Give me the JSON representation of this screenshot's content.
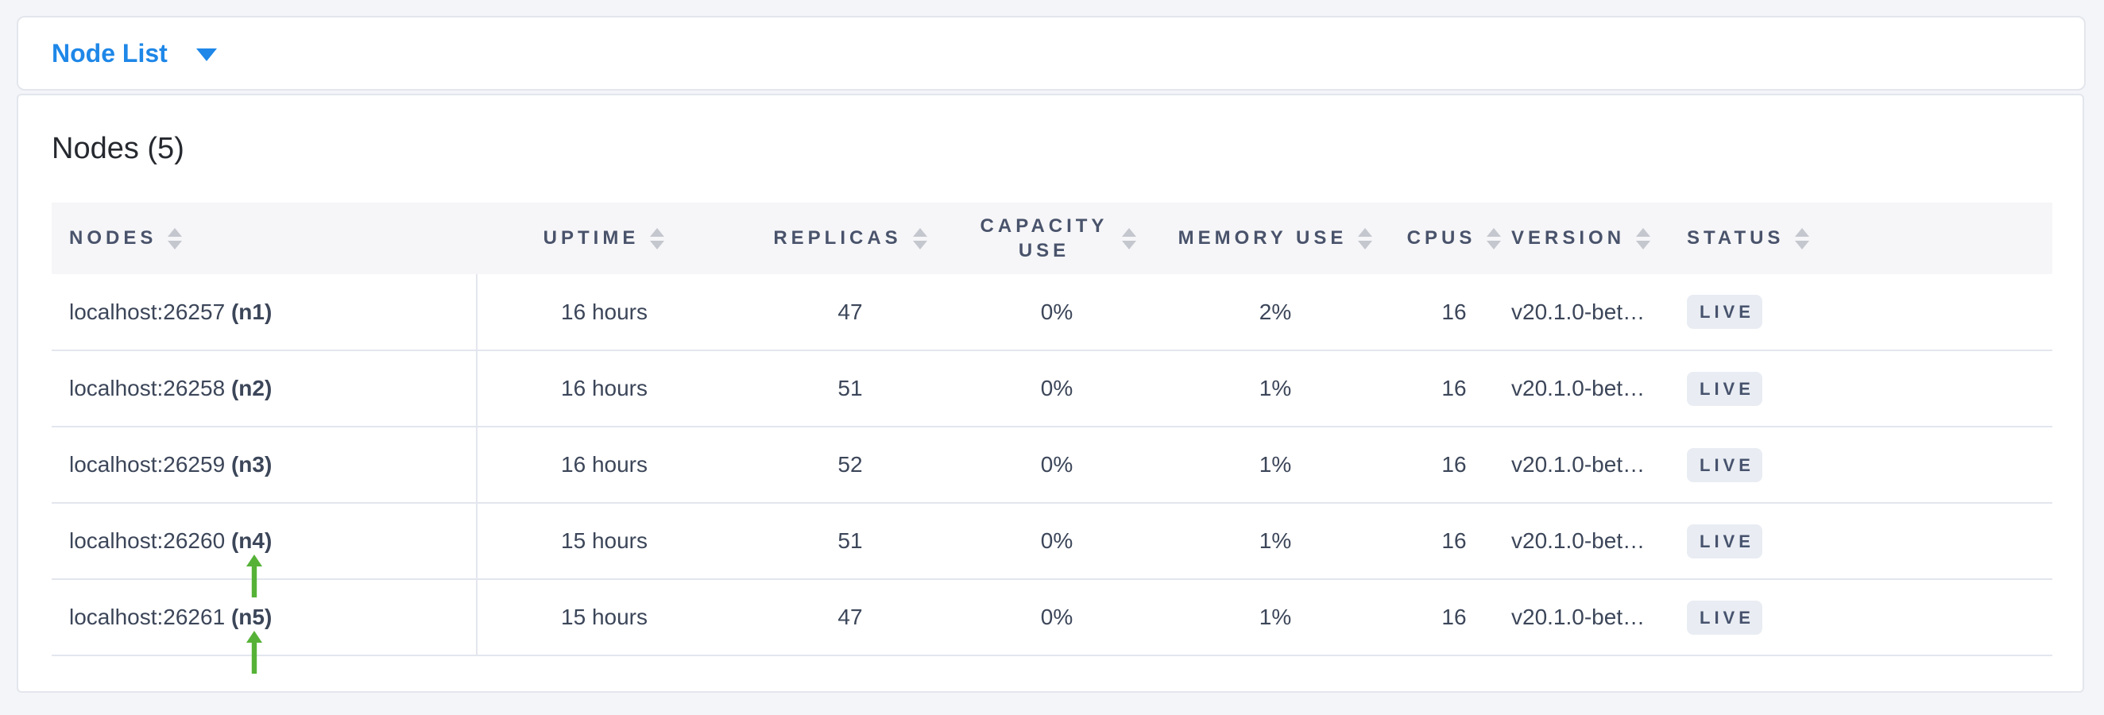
{
  "colors": {
    "accent": "#1e87e8",
    "arrow_green": "#55b237",
    "page_bg": "#f3f5f9",
    "card_border": "#e3e6ec",
    "header_bg": "#f6f6f8",
    "header_text": "#49536b",
    "cell_text": "#3c4659",
    "title_text": "#26292f",
    "row_border": "#e3e6ee",
    "sort_icon_color": "#c4c7ce",
    "badge_bg": "#e9edf3",
    "badge_text": "#47536d"
  },
  "icons": {
    "caret_down": "caret-down triangle",
    "sort": "up/down triangle pair",
    "annotation": "green-arrow-up"
  },
  "toolbar": {
    "dropdown_label": "Node List"
  },
  "main": {
    "title": "Nodes (5)"
  },
  "table": {
    "columns": [
      {
        "id": "nodes",
        "label": "NODES",
        "sortable": true
      },
      {
        "id": "uptime",
        "label": "UPTIME",
        "sortable": true
      },
      {
        "id": "replicas",
        "label": "REPLICAS",
        "sortable": true
      },
      {
        "id": "capacity_use",
        "label": "CAPACITY USE",
        "sortable": true
      },
      {
        "id": "memory_use",
        "label": "MEMORY USE",
        "sortable": true
      },
      {
        "id": "cpus",
        "label": "CPUS",
        "sortable": true
      },
      {
        "id": "version",
        "label": "VERSION",
        "sortable": true
      },
      {
        "id": "status",
        "label": "STATUS",
        "sortable": true
      }
    ],
    "rows": [
      {
        "address": "localhost:26257",
        "name": "(n1)",
        "uptime": "16 hours",
        "replicas": "47",
        "capacity_use": "0%",
        "memory_use": "2%",
        "cpus": "16",
        "version": "v20.1.0-bet…",
        "status": "LIVE",
        "annotated": false
      },
      {
        "address": "localhost:26258",
        "name": "(n2)",
        "uptime": "16 hours",
        "replicas": "51",
        "capacity_use": "0%",
        "memory_use": "1%",
        "cpus": "16",
        "version": "v20.1.0-bet…",
        "status": "LIVE",
        "annotated": false
      },
      {
        "address": "localhost:26259",
        "name": "(n3)",
        "uptime": "16 hours",
        "replicas": "52",
        "capacity_use": "0%",
        "memory_use": "1%",
        "cpus": "16",
        "version": "v20.1.0-bet…",
        "status": "LIVE",
        "annotated": false
      },
      {
        "address": "localhost:26260",
        "name": "(n4)",
        "uptime": "15 hours",
        "replicas": "51",
        "capacity_use": "0%",
        "memory_use": "1%",
        "cpus": "16",
        "version": "v20.1.0-bet…",
        "status": "LIVE",
        "annotated": true
      },
      {
        "address": "localhost:26261",
        "name": "(n5)",
        "uptime": "15 hours",
        "replicas": "47",
        "capacity_use": "0%",
        "memory_use": "1%",
        "cpus": "16",
        "version": "v20.1.0-bet…",
        "status": "LIVE",
        "annotated": true
      }
    ]
  }
}
